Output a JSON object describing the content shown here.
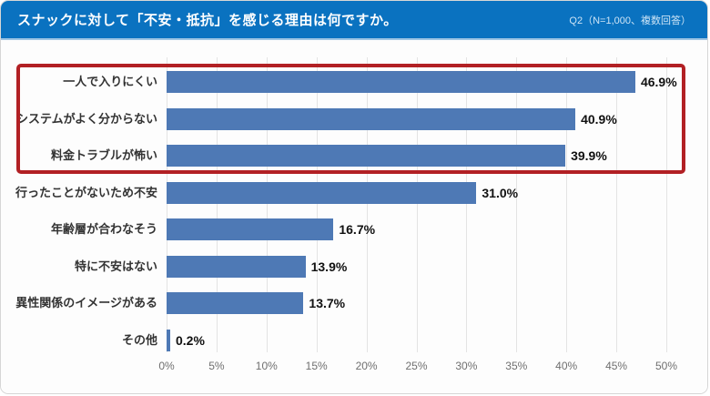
{
  "header": {
    "title": "スナックに対して「不安・抵抗」を感じる理由は何ですか。",
    "note": "Q2（N=1,000、複数回答）"
  },
  "colors": {
    "header_bg": "#0a72c0",
    "bar": "#4e79b5",
    "highlight_border": "#b22024",
    "grid": "#e4e4e4",
    "axis_text": "#6f6f6f",
    "category_text": "#333333",
    "value_text": "#111111"
  },
  "chart_data": {
    "type": "bar",
    "orientation": "horizontal",
    "title": "スナックに対して「不安・抵抗」を感じる理由は何ですか。",
    "subtitle": "Q2（N=1,000、複数回答）",
    "categories": [
      "一人で入りにくい",
      "システムがよく分からない",
      "料金トラブルが怖い",
      "行ったことがないため不安",
      "年齢層が合わなそう",
      "特に不安はない",
      "異性関係のイメージがある",
      "その他"
    ],
    "values": [
      46.9,
      40.9,
      39.9,
      31.0,
      16.7,
      13.9,
      13.7,
      0.2
    ],
    "value_labels": [
      "46.9%",
      "40.9%",
      "39.9%",
      "31.0%",
      "16.7%",
      "13.9%",
      "13.7%",
      "0.2%"
    ],
    "xlabel": "",
    "ylabel": "",
    "xlim": [
      0,
      50
    ],
    "xticks": [
      "0%",
      "5%",
      "10%",
      "15%",
      "20%",
      "25%",
      "30%",
      "35%",
      "40%",
      "45%",
      "50%"
    ],
    "xtick_values": [
      0,
      5,
      10,
      15,
      20,
      25,
      30,
      35,
      40,
      45,
      50
    ],
    "grid": true,
    "legend": false,
    "highlight": {
      "highlighted_rows": [
        0,
        1,
        2
      ],
      "style": "red-box-around-top-3"
    }
  }
}
